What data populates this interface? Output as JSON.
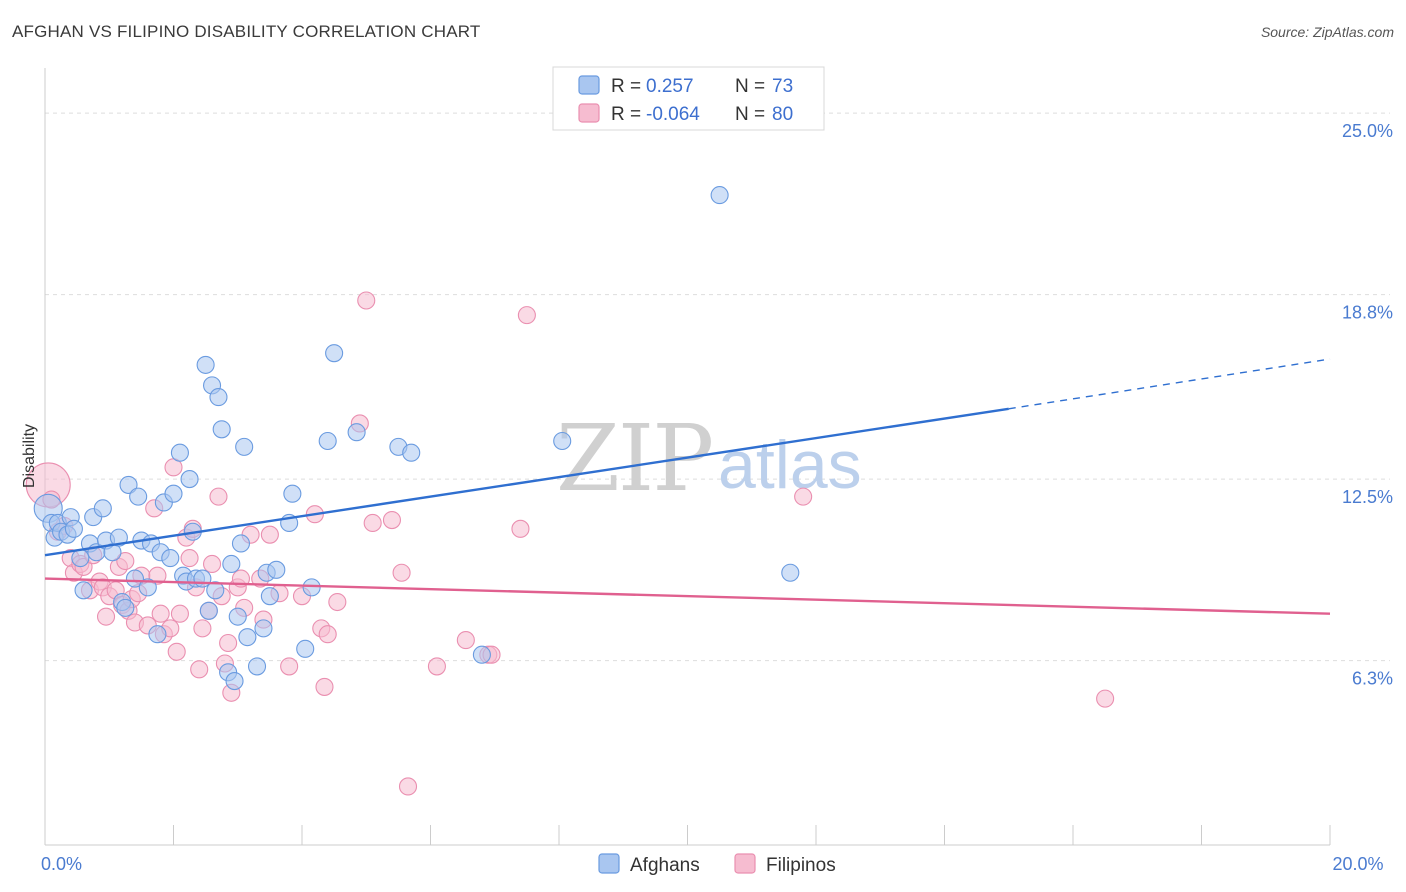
{
  "header": {
    "title": "AFGHAN VS FILIPINO DISABILITY CORRELATION CHART",
    "source": "Source: ZipAtlas.com"
  },
  "watermark": {
    "zip": "ZIP",
    "atlas": "atlas"
  },
  "legend": {
    "rows": [
      {
        "r_label": "R = ",
        "r_value": " 0.257",
        "n_label": "N = ",
        "n_value": "73",
        "color": "#6fa0e8"
      },
      {
        "r_label": "R = ",
        "r_value": "-0.064",
        "n_label": "N = ",
        "n_value": "80",
        "color": "#f08cb0"
      }
    ]
  },
  "colors": {
    "afghan_fill": "#a9c6f0",
    "afghan_stroke": "#6a9be0",
    "afghan_line": "#2f6fd0",
    "filipino_fill": "#f6bcd0",
    "filipino_stroke": "#ea8fb0",
    "filipino_line": "#e0608f",
    "grid": "#dddddd",
    "tick_text": "#4a7bd0"
  },
  "chart_data": {
    "type": "scatter",
    "title": "AFGHAN VS FILIPINO DISABILITY CORRELATION CHART",
    "xlabel": "",
    "ylabel": "Disability",
    "xlim": [
      0,
      20
    ],
    "ylim": [
      0,
      26.2
    ],
    "x_ticks": [
      0,
      2,
      4,
      6,
      8,
      10,
      12,
      14,
      16,
      18,
      20
    ],
    "x_tick_labels": {
      "0": "0.0%",
      "20": "20.0%"
    },
    "y_ticks": [
      6.3,
      12.5,
      18.8,
      25.0
    ],
    "y_tick_labels": [
      "6.3%",
      "12.5%",
      "18.8%",
      "25.0%"
    ],
    "grid": true,
    "legend_position": "top-center",
    "series": [
      {
        "name": "Afghans",
        "color": "#6a9be0",
        "points": [
          [
            0.05,
            11.5
          ],
          [
            0.1,
            11.0
          ],
          [
            0.15,
            10.5
          ],
          [
            0.2,
            11.0
          ],
          [
            0.25,
            10.7
          ],
          [
            0.35,
            10.6
          ],
          [
            0.4,
            11.2
          ],
          [
            0.45,
            10.8
          ],
          [
            0.55,
            9.8
          ],
          [
            0.6,
            8.7
          ],
          [
            0.7,
            10.3
          ],
          [
            0.75,
            11.2
          ],
          [
            0.8,
            10.0
          ],
          [
            0.9,
            11.5
          ],
          [
            0.95,
            10.4
          ],
          [
            1.05,
            10.0
          ],
          [
            1.15,
            10.5
          ],
          [
            1.2,
            8.3
          ],
          [
            1.25,
            8.1
          ],
          [
            1.3,
            12.3
          ],
          [
            1.4,
            9.1
          ],
          [
            1.45,
            11.9
          ],
          [
            1.5,
            10.4
          ],
          [
            1.6,
            8.8
          ],
          [
            1.65,
            10.3
          ],
          [
            1.75,
            7.2
          ],
          [
            1.8,
            10.0
          ],
          [
            1.85,
            11.7
          ],
          [
            1.95,
            9.8
          ],
          [
            2.0,
            12.0
          ],
          [
            2.1,
            13.4
          ],
          [
            2.15,
            9.2
          ],
          [
            2.2,
            9.0
          ],
          [
            2.25,
            12.5
          ],
          [
            2.3,
            10.7
          ],
          [
            2.35,
            9.1
          ],
          [
            2.45,
            9.1
          ],
          [
            2.5,
            16.4
          ],
          [
            2.55,
            8.0
          ],
          [
            2.6,
            15.7
          ],
          [
            2.65,
            8.7
          ],
          [
            2.7,
            15.3
          ],
          [
            2.75,
            14.2
          ],
          [
            2.85,
            5.9
          ],
          [
            2.9,
            9.6
          ],
          [
            2.95,
            5.6
          ],
          [
            3.0,
            7.8
          ],
          [
            3.05,
            10.3
          ],
          [
            3.1,
            13.6
          ],
          [
            3.15,
            7.1
          ],
          [
            3.3,
            6.1
          ],
          [
            3.4,
            7.4
          ],
          [
            3.45,
            9.3
          ],
          [
            3.5,
            8.5
          ],
          [
            3.6,
            9.4
          ],
          [
            3.8,
            11.0
          ],
          [
            3.85,
            12.0
          ],
          [
            4.05,
            6.7
          ],
          [
            4.15,
            8.8
          ],
          [
            4.4,
            13.8
          ],
          [
            4.5,
            16.8
          ],
          [
            4.85,
            14.1
          ],
          [
            5.5,
            13.6
          ],
          [
            5.7,
            13.4
          ],
          [
            6.8,
            6.5
          ],
          [
            8.05,
            13.8
          ],
          [
            10.5,
            22.2
          ],
          [
            11.6,
            9.3
          ]
        ],
        "trend": {
          "x": [
            0,
            15
          ],
          "y": [
            9.9,
            14.9
          ],
          "dashed_extension": {
            "x": [
              15,
              20
            ],
            "y": [
              14.9,
              16.6
            ]
          }
        }
      },
      {
        "name": "Filipinos",
        "color": "#ea8fb0",
        "points": [
          [
            0.05,
            12.3
          ],
          [
            0.1,
            11.8
          ],
          [
            0.2,
            10.7
          ],
          [
            0.3,
            10.9
          ],
          [
            0.4,
            9.8
          ],
          [
            0.45,
            9.3
          ],
          [
            0.55,
            9.6
          ],
          [
            0.6,
            9.5
          ],
          [
            0.7,
            8.7
          ],
          [
            0.75,
            9.9
          ],
          [
            0.85,
            9.0
          ],
          [
            0.9,
            8.8
          ],
          [
            0.95,
            7.8
          ],
          [
            1.0,
            8.5
          ],
          [
            1.1,
            8.7
          ],
          [
            1.15,
            9.5
          ],
          [
            1.2,
            8.2
          ],
          [
            1.25,
            9.7
          ],
          [
            1.3,
            8.0
          ],
          [
            1.35,
            8.4
          ],
          [
            1.4,
            7.6
          ],
          [
            1.45,
            8.6
          ],
          [
            1.5,
            9.2
          ],
          [
            1.6,
            7.5
          ],
          [
            1.7,
            11.5
          ],
          [
            1.75,
            9.2
          ],
          [
            1.8,
            7.9
          ],
          [
            1.85,
            7.2
          ],
          [
            1.95,
            7.4
          ],
          [
            2.0,
            12.9
          ],
          [
            2.05,
            6.6
          ],
          [
            2.1,
            7.9
          ],
          [
            2.2,
            10.5
          ],
          [
            2.25,
            9.8
          ],
          [
            2.3,
            10.8
          ],
          [
            2.35,
            8.8
          ],
          [
            2.4,
            6.0
          ],
          [
            2.45,
            7.4
          ],
          [
            2.55,
            8.0
          ],
          [
            2.6,
            9.6
          ],
          [
            2.7,
            11.9
          ],
          [
            2.75,
            8.5
          ],
          [
            2.8,
            6.2
          ],
          [
            2.85,
            6.9
          ],
          [
            2.9,
            5.2
          ],
          [
            3.0,
            8.8
          ],
          [
            3.05,
            9.1
          ],
          [
            3.1,
            8.1
          ],
          [
            3.2,
            10.6
          ],
          [
            3.35,
            9.1
          ],
          [
            3.4,
            7.7
          ],
          [
            3.5,
            10.6
          ],
          [
            3.65,
            8.6
          ],
          [
            3.8,
            6.1
          ],
          [
            4.0,
            8.5
          ],
          [
            4.2,
            11.3
          ],
          [
            4.3,
            7.4
          ],
          [
            4.35,
            5.4
          ],
          [
            4.4,
            7.2
          ],
          [
            4.55,
            8.3
          ],
          [
            4.9,
            14.4
          ],
          [
            5.0,
            18.6
          ],
          [
            5.1,
            11.0
          ],
          [
            5.4,
            11.1
          ],
          [
            5.55,
            9.3
          ],
          [
            5.65,
            2.0
          ],
          [
            6.1,
            6.1
          ],
          [
            6.55,
            7.0
          ],
          [
            6.9,
            6.5
          ],
          [
            6.95,
            6.5
          ],
          [
            7.4,
            10.8
          ],
          [
            7.5,
            18.1
          ],
          [
            11.8,
            11.9
          ],
          [
            16.5,
            5.0
          ]
        ],
        "trend": {
          "x": [
            0,
            20
          ],
          "y": [
            9.1,
            7.9
          ]
        }
      }
    ]
  },
  "bottom_legend": [
    {
      "label": "Afghans",
      "color": "#a9c6f0"
    },
    {
      "label": "Filipinos",
      "color": "#f6bcd0"
    }
  ]
}
